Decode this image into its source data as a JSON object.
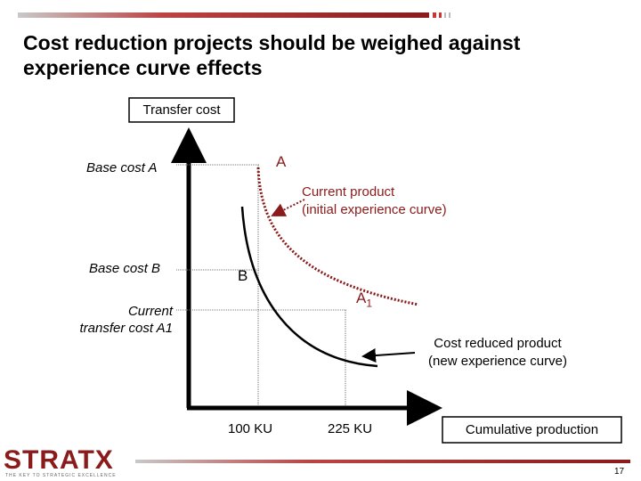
{
  "title": "Cost reduction projects should be weighed against experience curve effects",
  "y_axis_label": "Transfer cost",
  "x_axis_label": "Cumulative production",
  "labels": {
    "base_cost_a": "Base cost A",
    "point_a": "A",
    "current_product": [
      "Current product",
      "(initial experience curve)"
    ],
    "base_cost_b": "Base cost B",
    "point_b": "B",
    "point_a1": {
      "letter": "A",
      "subscript": "1"
    },
    "current_transfer_cost": [
      "Current",
      "transfer cost A1"
    ],
    "cost_reduced_product": [
      "Cost reduced product",
      "(new experience curve)"
    ],
    "x_100": "100 KU",
    "x_225": "225 KU"
  },
  "footer": {
    "logo": "STRATX",
    "tagline": "THE KEY TO STRATEGIC EXCELLENCE",
    "page": "17"
  }
}
